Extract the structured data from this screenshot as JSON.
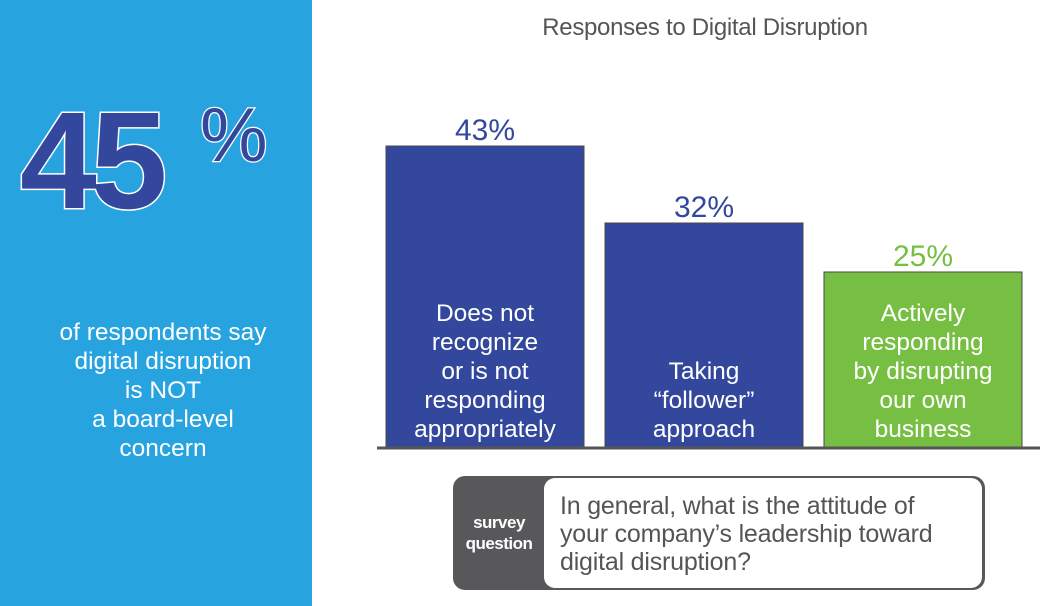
{
  "headline": {
    "number": "45",
    "percent_sign": "%",
    "caption_lines": [
      "of respondents say",
      "digital disruption",
      "is NOT",
      "a board-level",
      "concern"
    ]
  },
  "colors": {
    "panel_blue": "#27a4e0",
    "bar_blue": "#33479c",
    "bar_green": "#77bf43",
    "axis": "#555555",
    "survey_dark": "#58585a"
  },
  "chart_data": {
    "type": "bar",
    "title": "Responses to Digital Disruption",
    "xlabel": "",
    "ylabel": "",
    "ylim": [
      0,
      50
    ],
    "grid": false,
    "legend": "none",
    "categories": [
      "Does not recognize or is not responding appropriately",
      "Taking “follower” approach",
      "Actively responding by disrupting our own business"
    ],
    "category_lines": [
      [
        "Does not",
        "recognize",
        "or is not",
        "responding",
        "appropriately"
      ],
      [
        "Taking",
        "“follower”",
        "approach"
      ],
      [
        "Actively",
        "responding",
        "by disrupting",
        "our own",
        "business"
      ]
    ],
    "values": [
      43,
      32,
      25
    ],
    "value_labels": [
      "43%",
      "32%",
      "25%"
    ],
    "bar_colors": [
      "#33479c",
      "#33479c",
      "#77bf43"
    ],
    "label_colors": [
      "#33479c",
      "#33479c",
      "#77bf43"
    ]
  },
  "survey": {
    "tag_lines": [
      "survey",
      "question"
    ],
    "question_lines": [
      "In general, what is the attitude of",
      "your company’s leadership toward",
      "digital disruption?"
    ]
  }
}
